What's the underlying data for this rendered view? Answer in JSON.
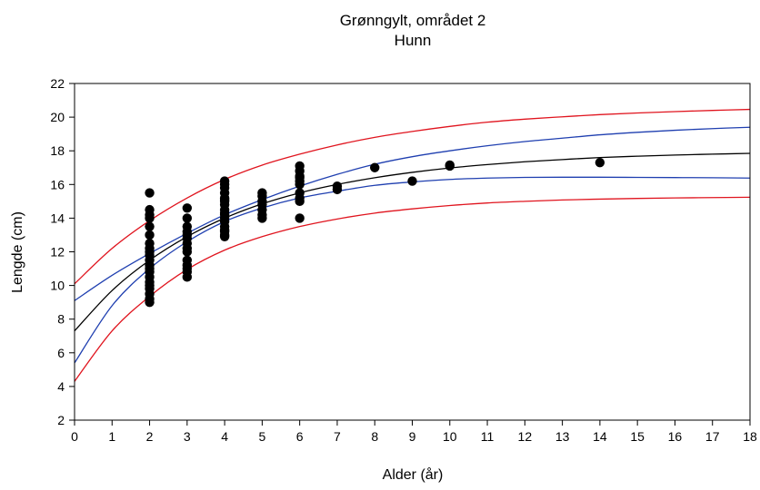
{
  "chart_data": {
    "type": "scatter",
    "title": "Grønngylt, området 2",
    "subtitle": "Hunn",
    "xlabel": "Alder (år)",
    "ylabel": "Lengde (cm)",
    "xlim": [
      0,
      18
    ],
    "ylim": [
      2,
      22
    ],
    "x_ticks": [
      0,
      1,
      2,
      3,
      4,
      5,
      6,
      7,
      8,
      9,
      10,
      11,
      12,
      13,
      14,
      15,
      16,
      17,
      18
    ],
    "y_ticks": [
      2,
      4,
      6,
      8,
      10,
      12,
      14,
      16,
      18,
      20,
      22
    ],
    "grid": false,
    "legend": "none",
    "colors": {
      "points": "#000000",
      "fit": "#000000",
      "confidence_band": "#1f3fb0",
      "prediction_band": "#e0141e"
    },
    "points": {
      "x": [
        2,
        2,
        2,
        2,
        2,
        2,
        2,
        2,
        2,
        2,
        2,
        2,
        2,
        2,
        2,
        2,
        2,
        2,
        2,
        2,
        2,
        3,
        3,
        3,
        3,
        3,
        3,
        3,
        3,
        3,
        3,
        3,
        3,
        3,
        3,
        4,
        4,
        4,
        4,
        4,
        4,
        4,
        4,
        4,
        4,
        4,
        4,
        4,
        4,
        4,
        4,
        4,
        4,
        5,
        5,
        5,
        5,
        5,
        5,
        5,
        6,
        6,
        6,
        6,
        6,
        6,
        6,
        6,
        6,
        6,
        7,
        7,
        8,
        9,
        10,
        10,
        14
      ],
      "y": [
        15.5,
        14.5,
        14,
        13.5,
        13,
        12.5,
        12.2,
        12,
        11.8,
        11.5,
        11.2,
        11,
        10.8,
        10.5,
        10.2,
        10,
        9.8,
        9.5,
        9.2,
        9,
        14.2,
        14.6,
        14,
        13.5,
        13.2,
        13,
        12.8,
        12.5,
        12.2,
        12,
        11.5,
        11.2,
        11,
        10.8,
        10.5,
        16.2,
        16,
        15.8,
        15.5,
        15.2,
        15,
        14.8,
        14.5,
        14.2,
        14,
        13.8,
        13.5,
        13.3,
        13.2,
        13,
        12.9,
        14.3,
        15.1,
        15.5,
        15.3,
        15,
        14.8,
        14.5,
        14.2,
        14,
        17.1,
        16.8,
        16.5,
        16.2,
        16,
        15.5,
        15.2,
        15,
        14,
        16.4,
        15.9,
        15.7,
        17,
        16.2,
        17.1,
        17.15,
        17.3
      ]
    },
    "curves": [
      {
        "role": "fit",
        "x": [
          0,
          1,
          2,
          3,
          4,
          5,
          6,
          7,
          8,
          9,
          10,
          11,
          12,
          13,
          14,
          15,
          16,
          17,
          18
        ],
        "y": [
          7.3,
          9.7,
          11.5,
          12.9,
          14.0,
          14.85,
          15.5,
          16.0,
          16.4,
          16.72,
          16.98,
          17.18,
          17.35,
          17.48,
          17.6,
          17.68,
          17.75,
          17.8,
          17.85
        ]
      },
      {
        "role": "confidence_upper",
        "x": [
          0,
          1,
          2,
          3,
          4,
          5,
          6,
          7,
          8,
          9,
          10,
          11,
          12,
          13,
          14,
          15,
          16,
          17,
          18
        ],
        "y": [
          9.1,
          10.6,
          11.9,
          13.1,
          14.2,
          15.1,
          15.9,
          16.6,
          17.2,
          17.65,
          18.0,
          18.3,
          18.55,
          18.75,
          18.95,
          19.1,
          19.22,
          19.32,
          19.4
        ]
      },
      {
        "role": "confidence_lower",
        "x": [
          0,
          1,
          2,
          3,
          4,
          5,
          6,
          7,
          8,
          9,
          10,
          11,
          12,
          13,
          14,
          15,
          16,
          17,
          18
        ],
        "y": [
          5.4,
          8.8,
          11.0,
          12.6,
          13.8,
          14.6,
          15.2,
          15.6,
          15.95,
          16.15,
          16.3,
          16.38,
          16.42,
          16.43,
          16.43,
          16.42,
          16.41,
          16.4,
          16.38
        ]
      },
      {
        "role": "prediction_upper",
        "x": [
          0,
          1,
          2,
          3,
          4,
          5,
          6,
          7,
          8,
          9,
          10,
          11,
          12,
          13,
          14,
          15,
          16,
          17,
          18
        ],
        "y": [
          10.1,
          12.2,
          13.85,
          15.2,
          16.3,
          17.15,
          17.8,
          18.35,
          18.8,
          19.15,
          19.45,
          19.7,
          19.88,
          20.02,
          20.15,
          20.25,
          20.33,
          20.4,
          20.46
        ]
      },
      {
        "role": "prediction_lower",
        "x": [
          0,
          1,
          2,
          3,
          4,
          5,
          6,
          7,
          8,
          9,
          10,
          11,
          12,
          13,
          14,
          15,
          16,
          17,
          18
        ],
        "y": [
          4.3,
          7.3,
          9.35,
          10.95,
          12.1,
          12.9,
          13.5,
          13.95,
          14.3,
          14.55,
          14.75,
          14.9,
          15.0,
          15.08,
          15.13,
          15.17,
          15.2,
          15.22,
          15.24
        ]
      }
    ]
  }
}
